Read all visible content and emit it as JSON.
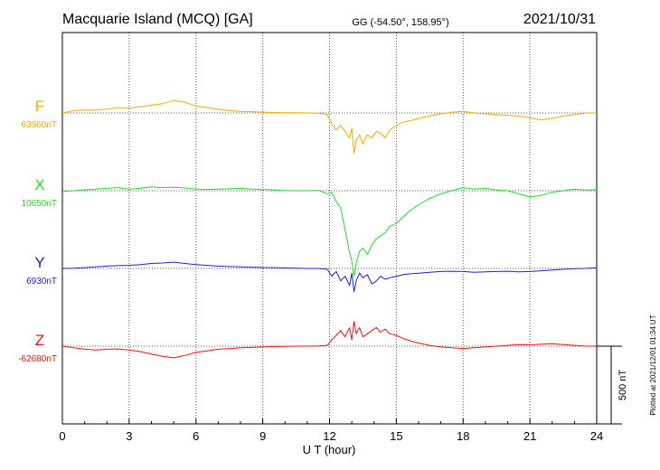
{
  "header": {
    "title": "Macquarie Island (MCQ)  [GA]",
    "coords": "GG (-54.50°, 158.95°)",
    "date": "2021/10/31"
  },
  "footer": {
    "plotted": "Plotted at 2021/12/01 01:34 UT"
  },
  "scale_bar": {
    "label": "500 nT",
    "value_nT": 500
  },
  "chart_data": {
    "type": "line",
    "xlabel": "U T (hour)",
    "xlim": [
      0,
      24
    ],
    "xticks": [
      0,
      3,
      6,
      9,
      12,
      15,
      18,
      21,
      24
    ],
    "grid": true,
    "series": [
      {
        "name": "F",
        "baseline_label": "63960nT",
        "baseline": 63960,
        "color": "#f5a800",
        "x": [
          0,
          0.5,
          1,
          1.5,
          2,
          2.5,
          3,
          3.5,
          4,
          4.5,
          5,
          5.5,
          6,
          6.5,
          7,
          7.5,
          8,
          8.5,
          9,
          9.5,
          10,
          10.5,
          11,
          11.5,
          11.9,
          12.1,
          12.3,
          12.5,
          12.7,
          12.9,
          13.0,
          13.1,
          13.2,
          13.35,
          13.5,
          13.7,
          13.9,
          14.1,
          14.3,
          14.5,
          14.7,
          15.0,
          15.3,
          15.6,
          16.0,
          16.5,
          17.0,
          17.5,
          18.0,
          18.5,
          19.0,
          19.5,
          20.0,
          20.5,
          21.0,
          21.5,
          22.0,
          22.5,
          23.0,
          23.5,
          24.0
        ],
        "values": [
          63960,
          63975,
          63980,
          63978,
          63985,
          63995,
          63990,
          64000,
          64010,
          64020,
          64040,
          64030,
          64005,
          63995,
          63985,
          63975,
          63970,
          63968,
          63965,
          63963,
          63962,
          63961,
          63960,
          63958,
          63950,
          63890,
          63850,
          63880,
          63840,
          63800,
          63860,
          63700,
          63780,
          63820,
          63760,
          63820,
          63800,
          63840,
          63830,
          63800,
          63850,
          63880,
          63900,
          63910,
          63925,
          63940,
          63955,
          63965,
          63970,
          63960,
          63955,
          63950,
          63945,
          63940,
          63930,
          63915,
          63925,
          63940,
          63950,
          63960,
          63960
        ]
      },
      {
        "name": "X",
        "baseline_label": "10650nT",
        "baseline": 10650,
        "color": "#22dd22",
        "x": [
          0,
          0.5,
          1,
          1.5,
          2,
          2.5,
          3,
          3.5,
          4,
          4.5,
          5,
          5.5,
          6,
          6.5,
          7,
          7.5,
          8,
          8.5,
          9,
          9.5,
          10,
          10.5,
          11,
          11.5,
          11.9,
          12.1,
          12.3,
          12.5,
          12.7,
          12.9,
          13.0,
          13.1,
          13.2,
          13.35,
          13.5,
          13.7,
          13.9,
          14.1,
          14.3,
          14.5,
          14.7,
          15.0,
          15.3,
          15.6,
          16.0,
          16.5,
          17.0,
          17.5,
          18.0,
          18.5,
          19.0,
          19.5,
          20.0,
          20.5,
          21.0,
          21.5,
          22.0,
          22.5,
          23.0,
          23.5,
          24.0
        ],
        "values": [
          10645,
          10650,
          10655,
          10660,
          10665,
          10670,
          10660,
          10665,
          10675,
          10670,
          10672,
          10668,
          10660,
          10658,
          10660,
          10662,
          10665,
          10660,
          10658,
          10655,
          10652,
          10650,
          10650,
          10652,
          10630,
          10640,
          10580,
          10540,
          10400,
          10250,
          10200,
          10100,
          10180,
          10260,
          10280,
          10240,
          10300,
          10340,
          10360,
          10380,
          10420,
          10440,
          10480,
          10520,
          10560,
          10600,
          10630,
          10650,
          10670,
          10660,
          10665,
          10655,
          10650,
          10630,
          10610,
          10620,
          10640,
          10650,
          10660,
          10655,
          10655
        ]
      },
      {
        "name": "Y",
        "baseline_label": "6930nT",
        "baseline": 6930,
        "color": "#1f1fdd",
        "x": [
          0,
          0.5,
          1,
          1.5,
          2,
          2.5,
          3,
          3.5,
          4,
          4.5,
          5,
          5.5,
          6,
          6.5,
          7,
          7.5,
          8,
          8.5,
          9,
          9.5,
          10,
          10.5,
          11,
          11.5,
          11.9,
          12.1,
          12.3,
          12.5,
          12.7,
          12.9,
          13.0,
          13.1,
          13.2,
          13.35,
          13.5,
          13.7,
          13.9,
          14.1,
          14.3,
          14.5,
          14.7,
          15.0,
          15.3,
          15.6,
          16.0,
          16.5,
          17.0,
          17.5,
          18.0,
          18.5,
          19.0,
          19.5,
          20.0,
          20.5,
          21.0,
          21.5,
          22.0,
          22.5,
          23.0,
          23.5,
          24.0
        ],
        "values": [
          6930,
          6932,
          6935,
          6940,
          6945,
          6948,
          6950,
          6955,
          6962,
          6965,
          6970,
          6962,
          6955,
          6950,
          6945,
          6942,
          6940,
          6938,
          6936,
          6935,
          6933,
          6931,
          6930,
          6930,
          6925,
          6880,
          6910,
          6850,
          6880,
          6820,
          6900,
          6780,
          6850,
          6900,
          6870,
          6890,
          6830,
          6850,
          6880,
          6860,
          6870,
          6880,
          6890,
          6895,
          6900,
          6905,
          6910,
          6912,
          6910,
          6905,
          6908,
          6910,
          6912,
          6908,
          6910,
          6915,
          6920,
          6925,
          6928,
          6930,
          6935
        ]
      },
      {
        "name": "Z",
        "baseline_label": "-62680nT",
        "baseline": -62680,
        "color": "#ee1111",
        "x": [
          0,
          0.5,
          1,
          1.5,
          2,
          2.5,
          3,
          3.5,
          4,
          4.5,
          5,
          5.5,
          6,
          6.5,
          7,
          7.5,
          8,
          8.5,
          9,
          9.5,
          10,
          10.5,
          11,
          11.5,
          11.9,
          12.1,
          12.3,
          12.5,
          12.7,
          12.9,
          13.0,
          13.1,
          13.2,
          13.35,
          13.5,
          13.7,
          13.9,
          14.1,
          14.3,
          14.5,
          14.7,
          15.0,
          15.3,
          15.6,
          16.0,
          16.5,
          17.0,
          17.5,
          18.0,
          18.5,
          19.0,
          19.5,
          20.0,
          20.5,
          21.0,
          21.5,
          22.0,
          22.5,
          23.0,
          23.5,
          24.0
        ],
        "values": [
          -62680,
          -62690,
          -62700,
          -62705,
          -62700,
          -62698,
          -62705,
          -62715,
          -62730,
          -62745,
          -62755,
          -62740,
          -62720,
          -62710,
          -62700,
          -62695,
          -62690,
          -62688,
          -62685,
          -62683,
          -62682,
          -62680,
          -62680,
          -62678,
          -62675,
          -62640,
          -62610,
          -62580,
          -62620,
          -62560,
          -62640,
          -62520,
          -62600,
          -62560,
          -62620,
          -62600,
          -62580,
          -62560,
          -62590,
          -62570,
          -62600,
          -62610,
          -62630,
          -62645,
          -62660,
          -62675,
          -62685,
          -62690,
          -62695,
          -62690,
          -62685,
          -62680,
          -62675,
          -62670,
          -62672,
          -62668,
          -62665,
          -62670,
          -62675,
          -62680,
          -62680
        ]
      }
    ]
  }
}
